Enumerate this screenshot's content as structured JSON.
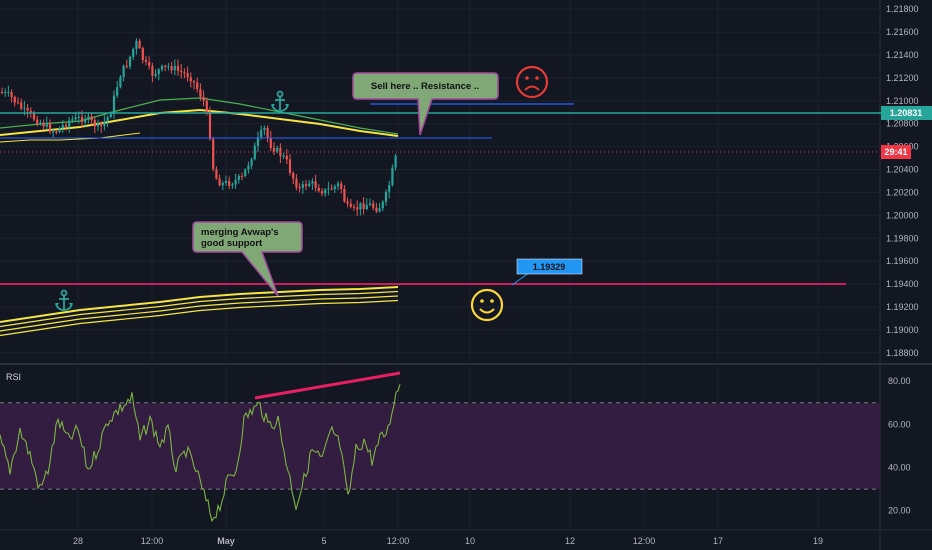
{
  "price_axis": {
    "ticks": [
      "1.21800",
      "1.21600",
      "1.21400",
      "1.21200",
      "1.21000",
      "1.20800",
      "1.20600",
      "1.20400",
      "1.20200",
      "1.20000",
      "1.19800",
      "1.19600",
      "1.19400",
      "1.19200",
      "1.19000",
      "1.18800"
    ],
    "tick_values": [
      1.218,
      1.216,
      1.214,
      1.212,
      1.21,
      1.208,
      1.206,
      1.204,
      1.202,
      1.2,
      1.198,
      1.196,
      1.194,
      1.192,
      1.19,
      1.188
    ],
    "min": 1.1872,
    "max": 1.2188
  },
  "time_axis": {
    "ticks": [
      "28",
      "12:00",
      "May",
      "5",
      "12:00",
      "10",
      "12",
      "12:00",
      "17",
      "19"
    ]
  },
  "rsi_axis": {
    "ticks": [
      "80.00",
      "60.00",
      "40.00",
      "20.00"
    ],
    "tick_values": [
      80,
      60,
      40,
      20
    ],
    "min": 12,
    "max": 87,
    "upper_band": 70,
    "lower_band": 30
  },
  "price_tags": {
    "resistance_tag": "1.20831",
    "current_tag": "29:41"
  },
  "annotations": {
    "sell_callout": "Sell here .. Resistance ..",
    "support_callout_line1": "merging Avwap's",
    "support_callout_line2": "good support",
    "support_price_label": "1.19329"
  },
  "rsi_panel": {
    "title": "RSI"
  },
  "colors": {
    "background": "#131722",
    "candle_up": "#26a69a",
    "candle_down": "#ef5350",
    "avwap_yellow": "#f5e642",
    "avwap_green": "#4caf50",
    "resistance_line": "#26a69a",
    "support_line": "#e91e63",
    "rsi_line": "#7cb342",
    "rsi_band_fill": "#3d1f4a",
    "rsi_divergence_line": "#e91e63",
    "callout_fill": "#7fa876",
    "callout_border": "#a34a9e",
    "price_label_fill": "#2196f3",
    "sad_face": "#e53935",
    "happy_face": "#fdd835",
    "current_price_tag": "#f23645"
  },
  "icons": [
    "anchor-icon",
    "anchor-icon",
    "sad-face-icon",
    "happy-face-icon"
  ]
}
